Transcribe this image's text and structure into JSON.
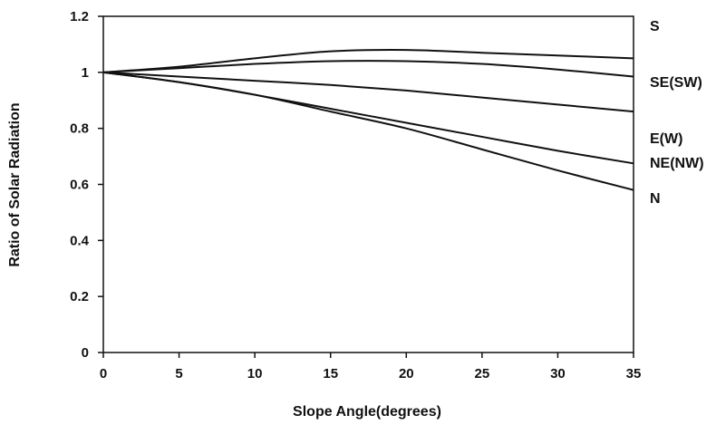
{
  "chart_data": {
    "type": "line",
    "title": "",
    "xlabel": "Slope Angle(degrees)",
    "ylabel": "Ratio of Solar Radiation",
    "xlim": [
      0,
      35
    ],
    "ylim": [
      0,
      1.2
    ],
    "xticks": [
      0,
      5,
      10,
      15,
      20,
      25,
      30,
      35
    ],
    "yticks": [
      0,
      0.2,
      0.4,
      0.6,
      0.8,
      1,
      1.2
    ],
    "xtick_labels": [
      "0",
      "5",
      "10",
      "15",
      "20",
      "25",
      "30",
      "35"
    ],
    "ytick_labels": [
      "0",
      "0.2",
      "0.4",
      "0.6",
      "0.8",
      "1",
      "1.2"
    ],
    "grid": false,
    "legend": "line-end labels on right",
    "line_color": "#111111",
    "x": [
      0,
      5,
      10,
      15,
      20,
      25,
      30,
      35
    ],
    "series": [
      {
        "name": "S",
        "values": [
          1.0,
          1.02,
          1.05,
          1.075,
          1.08,
          1.07,
          1.06,
          1.05
        ]
      },
      {
        "name": "SE(SW)",
        "values": [
          1.0,
          1.015,
          1.03,
          1.04,
          1.04,
          1.03,
          1.01,
          0.985
        ]
      },
      {
        "name": "E(W)",
        "values": [
          1.0,
          0.985,
          0.97,
          0.955,
          0.935,
          0.91,
          0.885,
          0.86
        ]
      },
      {
        "name": "NE(NW)",
        "values": [
          1.0,
          0.965,
          0.92,
          0.87,
          0.82,
          0.77,
          0.72,
          0.675
        ]
      },
      {
        "name": "N",
        "values": [
          1.0,
          0.965,
          0.92,
          0.86,
          0.8,
          0.725,
          0.65,
          0.58
        ]
      }
    ]
  }
}
